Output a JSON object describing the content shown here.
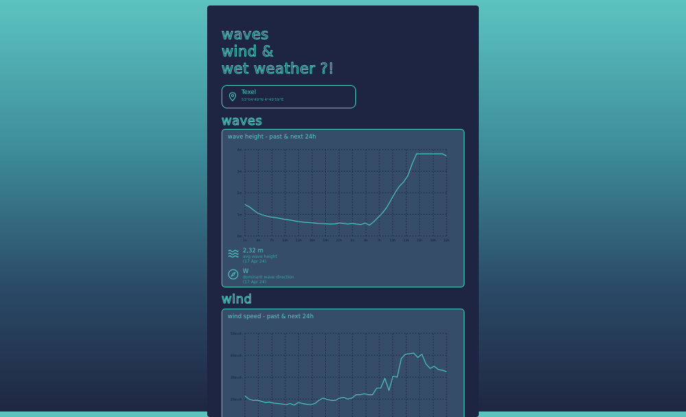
{
  "header": {
    "line1": "waves",
    "line2": "wind &",
    "line3": "wet weather ?!"
  },
  "location": {
    "icon": "map-pin-icon",
    "name": "Texel",
    "coords": "53°04'49\"N 4°49'59\"E"
  },
  "waves": {
    "section_title": "waves",
    "chart_title": "wave height - past & next 24h",
    "stats": [
      {
        "icon": "waves-icon",
        "value": "2,32 m",
        "label": "avg wave height",
        "date": "(17 Apr 24)"
      },
      {
        "icon": "compass-icon",
        "value": "W",
        "label": "dominant wave direction",
        "date": "(17 Apr 24)"
      }
    ]
  },
  "wind": {
    "section_title": "wind",
    "chart_title": "wind speed - past & next 24h"
  },
  "colors": {
    "accent": "#4fd1c5",
    "card_bg": "#1e2542",
    "panel_bg": "#354d69"
  },
  "chart_data": [
    {
      "type": "line",
      "title": "wave height - past & next 24h",
      "y_tick_labels": [
        "0m",
        "1m",
        "2m",
        "3m",
        "4m"
      ],
      "ylim": [
        0,
        4
      ],
      "x_tick_labels": [
        "1h",
        "4h",
        "7h",
        "10h",
        "13h",
        "16h",
        "19h",
        "22h",
        "1h",
        "4h",
        "7h",
        "10h",
        "13h",
        "16h",
        "19h",
        "22h"
      ],
      "grid": true,
      "series": [
        {
          "values": [
            1.45,
            1.35,
            1.2,
            1.05,
            0.98,
            0.92,
            0.88,
            0.85,
            0.82,
            0.78,
            0.75,
            0.72,
            0.68,
            0.65,
            0.63,
            0.62,
            0.6,
            0.58,
            0.57,
            0.56,
            0.55,
            0.56,
            0.6,
            0.58,
            0.55,
            0.58,
            0.55,
            0.52,
            0.6,
            0.5,
            0.65,
            0.85,
            1.05,
            1.3,
            1.65,
            2.0,
            2.3,
            2.5,
            2.8,
            3.35,
            3.8,
            3.8,
            3.8,
            3.8,
            3.8,
            3.8,
            3.8,
            3.7
          ]
        }
      ]
    },
    {
      "type": "line",
      "title": "wind speed - past & next 24h",
      "y_tick_labels": [
        "20km/h",
        "30km/h",
        "40km/h",
        "50km/h"
      ],
      "grid": true,
      "series": [
        {
          "values": [
            21.5,
            20,
            19.5,
            19.6,
            19,
            18.5,
            18.7,
            18.2,
            18,
            17.8,
            17.5,
            18,
            17.3,
            18.5,
            18,
            17.7,
            17.5,
            18,
            19.5,
            20.5,
            19.8,
            19.5,
            19.5,
            20.5,
            20.8,
            20,
            20.5,
            22,
            22,
            22.5,
            22,
            22,
            25,
            25,
            29.5,
            24,
            30.5,
            30,
            38.5,
            40.5,
            40.7,
            41,
            39,
            40.5,
            36,
            34,
            35,
            33.5,
            33.2,
            32.5
          ]
        }
      ]
    }
  ]
}
